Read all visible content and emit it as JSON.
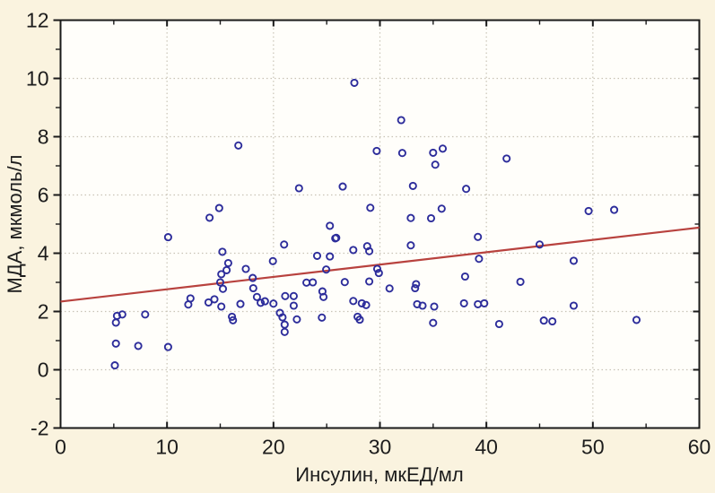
{
  "figure": {
    "background_color": "#FAF3DF",
    "plot_background_color": "#FFFEFA",
    "axis_color": "#1a1a1a",
    "grid_color": "#c9c4b6",
    "text_color": "#1c1c1c"
  },
  "chart_data": {
    "type": "scatter",
    "title": "",
    "xlabel": "Инсулин, мкЕД/мл",
    "ylabel": "МДА, мкмоль/л",
    "xlim": [
      0,
      60
    ],
    "ylim": [
      -2,
      12
    ],
    "x_major_ticks": [
      0,
      10,
      20,
      30,
      40,
      50,
      60
    ],
    "x_minor_ticks": [
      5,
      15,
      25,
      35,
      45,
      55
    ],
    "y_major_ticks": [
      -2,
      0,
      2,
      4,
      6,
      8,
      10,
      12
    ],
    "y_minor_ticks": [
      -1,
      1,
      3,
      5,
      7,
      9,
      11
    ],
    "grid": true,
    "grid_x_values": [
      10,
      20,
      30,
      40,
      50
    ],
    "grid_y_values": [
      0,
      2,
      4,
      6,
      8,
      10
    ],
    "legend": "none",
    "series": [
      {
        "name": "observations",
        "marker": "open-circle",
        "color": "#2d2d9b",
        "points": [
          [
            5.3,
            1.85
          ],
          [
            5.8,
            1.9
          ],
          [
            5.2,
            1.62
          ],
          [
            7.95,
            1.9
          ],
          [
            5.2,
            0.9
          ],
          [
            7.3,
            0.82
          ],
          [
            10.1,
            0.78
          ],
          [
            5.1,
            0.15
          ],
          [
            10.1,
            4.55
          ],
          [
            14.0,
            5.22
          ],
          [
            14.9,
            5.55
          ],
          [
            16.7,
            7.7
          ],
          [
            15.2,
            4.05
          ],
          [
            15.1,
            3.28
          ],
          [
            15.6,
            3.42
          ],
          [
            15.0,
            3.0
          ],
          [
            15.25,
            2.78
          ],
          [
            15.75,
            3.66
          ],
          [
            12.2,
            2.45
          ],
          [
            12.0,
            2.24
          ],
          [
            13.9,
            2.31
          ],
          [
            14.45,
            2.42
          ],
          [
            15.1,
            2.17
          ],
          [
            16.9,
            2.26
          ],
          [
            16.1,
            1.82
          ],
          [
            16.2,
            1.7
          ],
          [
            17.4,
            3.46
          ],
          [
            18.05,
            3.15
          ],
          [
            18.1,
            2.8
          ],
          [
            18.45,
            2.5
          ],
          [
            18.8,
            2.3
          ],
          [
            19.2,
            2.35
          ],
          [
            19.95,
            3.73
          ],
          [
            20.0,
            2.27
          ],
          [
            20.6,
            1.95
          ],
          [
            20.85,
            1.8
          ],
          [
            21.0,
            4.3
          ],
          [
            21.1,
            2.53
          ],
          [
            21.9,
            2.53
          ],
          [
            21.9,
            2.2
          ],
          [
            22.2,
            1.73
          ],
          [
            21.05,
            1.55
          ],
          [
            21.05,
            1.3
          ],
          [
            22.4,
            6.23
          ],
          [
            23.1,
            2.99
          ],
          [
            23.7,
            3.0
          ],
          [
            24.1,
            3.91
          ],
          [
            24.95,
            3.44
          ],
          [
            24.6,
            2.69
          ],
          [
            24.7,
            2.5
          ],
          [
            24.55,
            1.79
          ],
          [
            25.3,
            3.89
          ],
          [
            25.9,
            4.53
          ],
          [
            25.3,
            4.94
          ],
          [
            25.8,
            4.51
          ],
          [
            26.5,
            6.29
          ],
          [
            26.7,
            3.01
          ],
          [
            27.6,
            9.85
          ],
          [
            27.5,
            4.11
          ],
          [
            27.5,
            2.36
          ],
          [
            28.3,
            2.28
          ],
          [
            28.7,
            2.22
          ],
          [
            27.9,
            1.82
          ],
          [
            28.1,
            1.72
          ],
          [
            28.8,
            4.24
          ],
          [
            29.0,
            4.07
          ],
          [
            29.1,
            5.56
          ],
          [
            29.0,
            3.03
          ],
          [
            29.7,
            7.51
          ],
          [
            29.75,
            3.46
          ],
          [
            29.9,
            3.32
          ],
          [
            30.9,
            2.79
          ],
          [
            32.0,
            8.57
          ],
          [
            32.1,
            7.44
          ],
          [
            32.9,
            5.21
          ],
          [
            33.1,
            6.31
          ],
          [
            32.9,
            4.27
          ],
          [
            33.5,
            2.25
          ],
          [
            34.0,
            2.2
          ],
          [
            33.4,
            2.94
          ],
          [
            33.3,
            2.8
          ],
          [
            34.8,
            5.2
          ],
          [
            35.0,
            7.45
          ],
          [
            35.2,
            7.04
          ],
          [
            35.1,
            2.17
          ],
          [
            35.0,
            1.61
          ],
          [
            35.8,
            5.53
          ],
          [
            35.9,
            7.59
          ],
          [
            37.9,
            2.28
          ],
          [
            38.0,
            3.2
          ],
          [
            38.1,
            6.21
          ],
          [
            39.2,
            4.56
          ],
          [
            39.3,
            3.81
          ],
          [
            39.2,
            2.25
          ],
          [
            39.8,
            2.28
          ],
          [
            41.2,
            1.57
          ],
          [
            41.9,
            7.25
          ],
          [
            43.2,
            3.02
          ],
          [
            45.0,
            4.3
          ],
          [
            45.4,
            1.69
          ],
          [
            46.2,
            1.66
          ],
          [
            48.2,
            3.74
          ],
          [
            48.2,
            2.2
          ],
          [
            49.6,
            5.45
          ],
          [
            52.0,
            5.49
          ],
          [
            54.1,
            1.71
          ]
        ]
      }
    ],
    "trendline": {
      "color": "#b8423e",
      "x_start": 0,
      "y_start": 2.34,
      "x_end": 60,
      "y_end": 4.88
    }
  }
}
